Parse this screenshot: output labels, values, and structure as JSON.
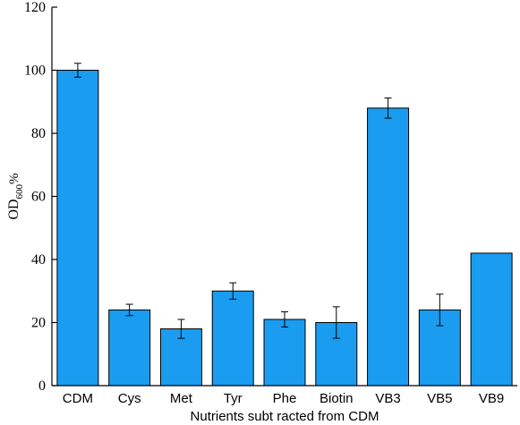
{
  "chart_data": {
    "type": "bar",
    "categories": [
      "CDM",
      "Cys",
      "Met",
      "Tyr",
      "Phe",
      "Biotin",
      "VB3",
      "VB5",
      "VB9"
    ],
    "values": [
      100,
      24,
      18,
      30,
      21,
      20,
      88,
      24,
      42
    ],
    "errors": [
      2.2,
      1.8,
      3.0,
      2.6,
      2.4,
      5.0,
      3.2,
      5.0,
      0
    ],
    "xlabel": "Nutrients subt racted from CDM",
    "ylabel_main": "OD",
    "ylabel_sub": "600",
    "ylabel_suffix": "%",
    "ylim": [
      0,
      120
    ],
    "yticks": [
      0,
      20,
      40,
      60,
      80,
      100,
      120
    ],
    "bar_color": "#1a9cf0",
    "grid": false
  }
}
